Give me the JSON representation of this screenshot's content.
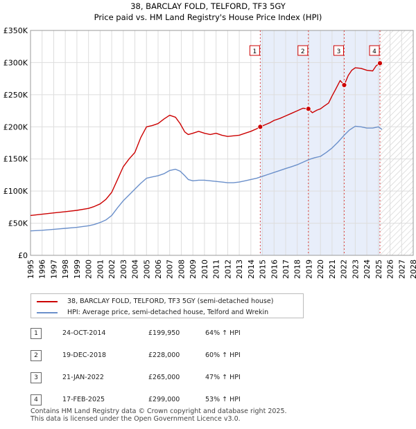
{
  "chart_data": {
    "type": "line",
    "title": "38, BARCLAY FOLD, TELFORD, TF3 5GY",
    "subtitle": "Price paid vs. HM Land Registry's House Price Index (HPI)",
    "xlabel": "",
    "ylabel": "",
    "xlim": [
      1995,
      2028
    ],
    "ylim": [
      0,
      350000
    ],
    "grid": true,
    "x_ticks": [
      1995,
      1996,
      1997,
      1998,
      1999,
      2000,
      2001,
      2002,
      2003,
      2004,
      2005,
      2006,
      2007,
      2008,
      2009,
      2010,
      2011,
      2012,
      2013,
      2014,
      2015,
      2016,
      2017,
      2018,
      2019,
      2020,
      2021,
      2022,
      2023,
      2024,
      2025,
      2026,
      2027,
      2028
    ],
    "y_ticks": [
      0,
      50000,
      100000,
      150000,
      200000,
      250000,
      300000,
      350000
    ],
    "y_tick_labels": [
      "£0",
      "£50K",
      "£100K",
      "£150K",
      "£200K",
      "£250K",
      "£300K",
      "£350K"
    ],
    "colors": {
      "property": "#cc0000",
      "hpi": "#6a8fca",
      "shade": "#e8eefa",
      "hatch": "#cccccc",
      "vline": "#dd4444"
    },
    "series": [
      {
        "name": "38, BARCLAY FOLD, TELFORD, TF3 5GY (semi-detached house)",
        "color": "#cc0000",
        "x": [
          1995.0,
          1996.0,
          1997.0,
          1998.0,
          1999.0,
          2000.0,
          2000.5,
          2001.0,
          2001.5,
          2002.0,
          2002.5,
          2003.0,
          2003.5,
          2004.0,
          2004.5,
          2005.0,
          2005.5,
          2006.0,
          2006.5,
          2007.0,
          2007.5,
          2007.9,
          2008.3,
          2008.6,
          2009.0,
          2009.5,
          2010.0,
          2010.5,
          2011.0,
          2011.5,
          2012.0,
          2012.5,
          2013.0,
          2013.5,
          2014.0,
          2014.5,
          2014.81,
          2015.2,
          2015.6,
          2016.0,
          2016.5,
          2017.0,
          2017.5,
          2018.0,
          2018.5,
          2018.96,
          2019.3,
          2019.7,
          2020.0,
          2020.3,
          2020.7,
          2021.0,
          2021.3,
          2021.7,
          2022.05,
          2022.4,
          2022.7,
          2023.0,
          2023.5,
          2024.0,
          2024.5,
          2024.8,
          2025.13
        ],
        "y": [
          62000,
          64000,
          66000,
          68000,
          70000,
          73000,
          76000,
          80000,
          87000,
          98000,
          118000,
          138000,
          150000,
          160000,
          183000,
          200000,
          202000,
          205000,
          212000,
          218000,
          215000,
          205000,
          192000,
          188000,
          190000,
          193000,
          190000,
          188000,
          190000,
          187000,
          185000,
          186000,
          187000,
          190000,
          193000,
          197000,
          199950,
          203000,
          206000,
          210000,
          213000,
          217000,
          221000,
          225000,
          229000,
          228000,
          222000,
          226000,
          228000,
          232000,
          237000,
          248000,
          258000,
          272000,
          265000,
          280000,
          288000,
          292000,
          291000,
          288000,
          287000,
          295000,
          299000
        ]
      },
      {
        "name": "HPI: Average price, semi-detached house, Telford and Wrekin",
        "color": "#6a8fca",
        "x": [
          1995.0,
          1996.0,
          1997.0,
          1998.0,
          1999.0,
          2000.0,
          2000.5,
          2001.0,
          2001.5,
          2002.0,
          2002.5,
          2003.0,
          2003.5,
          2004.0,
          2004.5,
          2005.0,
          2005.5,
          2006.0,
          2006.5,
          2007.0,
          2007.5,
          2007.9,
          2008.3,
          2008.6,
          2009.0,
          2009.5,
          2010.0,
          2010.5,
          2011.0,
          2011.5,
          2012.0,
          2012.5,
          2013.0,
          2013.5,
          2014.0,
          2014.5,
          2015.0,
          2015.5,
          2016.0,
          2016.5,
          2017.0,
          2017.5,
          2018.0,
          2018.5,
          2019.0,
          2019.5,
          2020.0,
          2020.5,
          2021.0,
          2021.5,
          2022.0,
          2022.5,
          2023.0,
          2023.5,
          2024.0,
          2024.5,
          2025.0,
          2025.3
        ],
        "y": [
          38000,
          39000,
          40500,
          42000,
          43500,
          46000,
          48000,
          51000,
          55000,
          62000,
          74000,
          85000,
          94000,
          103000,
          112000,
          120000,
          122000,
          124000,
          127000,
          132000,
          134000,
          131000,
          124000,
          118000,
          116000,
          117000,
          117000,
          116000,
          115000,
          114000,
          113000,
          113000,
          114000,
          116000,
          118000,
          120000,
          123000,
          126000,
          129000,
          132000,
          135000,
          138000,
          141000,
          145000,
          149000,
          152000,
          154000,
          160000,
          167000,
          176000,
          186000,
          195000,
          201000,
          200000,
          198000,
          198000,
          200000,
          196000
        ]
      }
    ],
    "shaded_region": {
      "from": 2014.81,
      "to": 2025.13
    },
    "future_region": {
      "from": 2025.13,
      "to": 2028
    },
    "sales": [
      {
        "label": "1",
        "x": 2014.81,
        "y": 199950
      },
      {
        "label": "2",
        "x": 2018.96,
        "y": 228000
      },
      {
        "label": "3",
        "x": 2022.05,
        "y": 265000
      },
      {
        "label": "4",
        "x": 2025.13,
        "y": 299000
      }
    ]
  },
  "legend": {
    "property_label": "38, BARCLAY FOLD, TELFORD, TF3 5GY (semi-detached house)",
    "hpi_label": "HPI: Average price, semi-detached house, Telford and Wrekin"
  },
  "table": [
    {
      "num": "1",
      "date": "24-OCT-2014",
      "price": "£199,950",
      "hpi": "64% ↑ HPI"
    },
    {
      "num": "2",
      "date": "19-DEC-2018",
      "price": "£228,000",
      "hpi": "60% ↑ HPI"
    },
    {
      "num": "3",
      "date": "21-JAN-2022",
      "price": "£265,000",
      "hpi": "47% ↑ HPI"
    },
    {
      "num": "4",
      "date": "17-FEB-2025",
      "price": "£299,000",
      "hpi": "53% ↑ HPI"
    }
  ],
  "footer": {
    "line1": "Contains HM Land Registry data © Crown copyright and database right 2025.",
    "line2": "This data is licensed under the Open Government Licence v3.0."
  }
}
